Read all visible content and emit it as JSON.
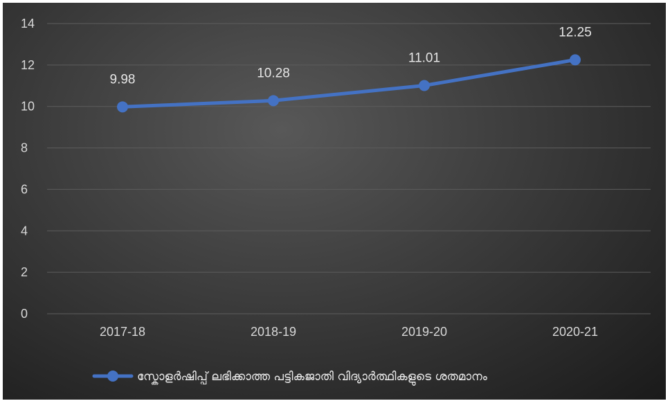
{
  "chart_data": {
    "type": "line",
    "title": "",
    "xlabel": "",
    "ylabel": "",
    "categories": [
      "2017-18",
      "2018-19",
      "2019-20",
      "2020-21"
    ],
    "series": [
      {
        "name": "സ്കോളർഷിപ്പ് ലഭിക്കാത്ത പട്ടികജാതി വിദ്യാർത്ഥികളുടെ ശതമാനം",
        "values": [
          9.98,
          10.28,
          11.01,
          12.25
        ],
        "labels": [
          "9.98",
          "10.28",
          "11.01",
          "12.25"
        ],
        "color": "#4472c4"
      }
    ],
    "ylim": [
      0,
      14
    ],
    "yticks": [
      "0",
      "2",
      "4",
      "6",
      "8",
      "10",
      "12",
      "14"
    ],
    "grid": true,
    "legend_position": "bottom",
    "background_color": "#3a3a3a",
    "gridline_color": "#5d5d5d"
  }
}
